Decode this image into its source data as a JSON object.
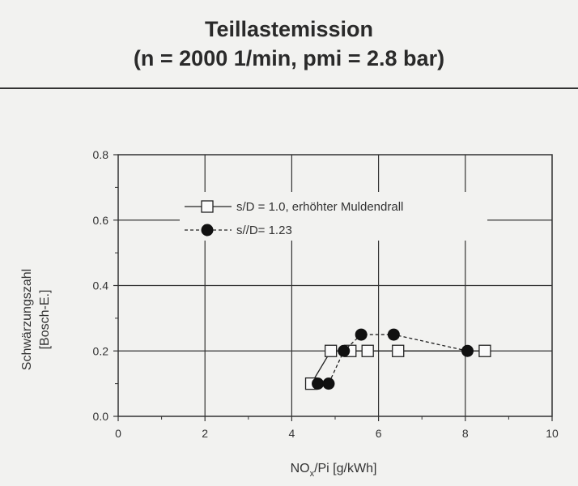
{
  "header": {
    "title_line1": "Teillastemission",
    "title_line2": "(n = 2000 1/min, pmi = 2.8 bar)"
  },
  "chart_data": {
    "type": "scatter",
    "title": "Teillastemission (n = 2000 1/min, pmi = 2.8 bar)",
    "xlabel_main": "NO",
    "xlabel_sub": "x",
    "xlabel_rest": "/Pi [g/kWh]",
    "ylabel_line1": "Schwärzungszahl",
    "ylabel_line2": "[Bosch-E.]",
    "xlim": [
      0,
      10
    ],
    "ylim": [
      0,
      0.8
    ],
    "xticks": [
      0,
      2,
      4,
      6,
      8,
      10
    ],
    "xtick_labels": [
      "0",
      "2",
      "4",
      "6",
      "8",
      "10"
    ],
    "yticks": [
      0,
      0.2,
      0.4,
      0.6,
      0.8
    ],
    "ytick_labels": [
      "0.0",
      "0.2",
      "0.4",
      "0.6",
      "0.8"
    ],
    "grid": true,
    "legend_position": "upper-left",
    "series": [
      {
        "name": "s/D = 1.0, erhöhter Muldendrall",
        "marker": "open-square",
        "line": "solid",
        "x": [
          4.45,
          4.9,
          5.35,
          5.75,
          6.45,
          8.45
        ],
        "y": [
          0.1,
          0.2,
          0.2,
          0.2,
          0.2,
          0.2
        ]
      },
      {
        "name": "s//D= 1.23",
        "marker": "filled-circle",
        "line": "dashed",
        "x": [
          4.6,
          4.85,
          5.2,
          5.6,
          6.35,
          8.05
        ],
        "y": [
          0.1,
          0.1,
          0.2,
          0.25,
          0.25,
          0.2
        ]
      }
    ]
  }
}
